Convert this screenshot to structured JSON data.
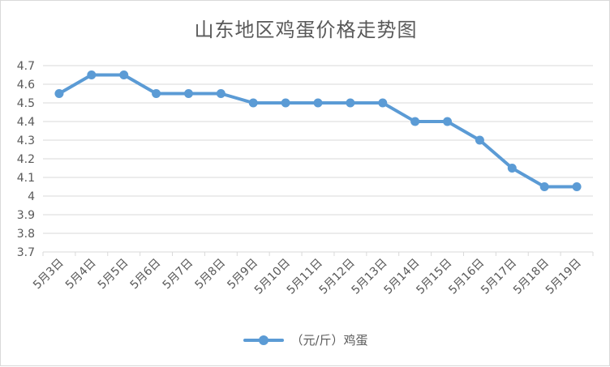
{
  "chart_data": {
    "type": "line",
    "title": "山东地区鸡蛋价格走势图",
    "xlabel": "",
    "ylabel": "",
    "categories": [
      "5月3日",
      "5月4日",
      "5月5日",
      "5月6日",
      "5月7日",
      "5月8日",
      "5月9日",
      "5月10日",
      "5月11日",
      "5月12日",
      "5月13日",
      "5月14日",
      "5月15日",
      "5月16日",
      "5月17日",
      "5月18日",
      "5月19日"
    ],
    "series": [
      {
        "name": "（元/斤）鸡蛋",
        "values": [
          4.55,
          4.65,
          4.65,
          4.55,
          4.55,
          4.55,
          4.5,
          4.5,
          4.5,
          4.5,
          4.5,
          4.4,
          4.4,
          4.3,
          4.15,
          4.05,
          4.05
        ],
        "color": "#5b9bd5"
      }
    ],
    "ylim": [
      3.7,
      4.7
    ],
    "yticks": [
      "3.7",
      "3.8",
      "3.9",
      "4",
      "4.1",
      "4.2",
      "4.3",
      "4.4",
      "4.5",
      "4.6",
      "4.7"
    ],
    "grid": true,
    "legend_position": "bottom"
  },
  "colors": {
    "series": "#5b9bd5",
    "grid": "#d9d9d9",
    "text": "#595959"
  }
}
